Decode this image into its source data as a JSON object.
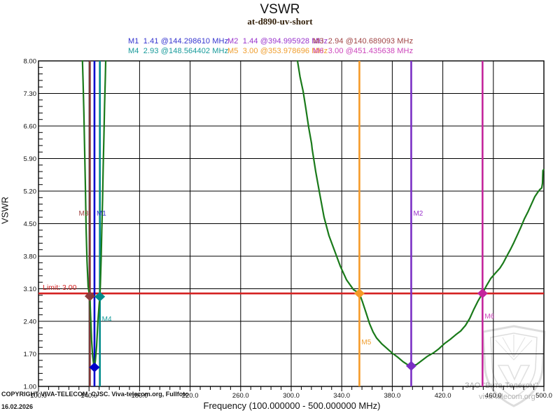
{
  "copyright": {
    "line1": "COPYRIGHT VIVA-TELECOM, CJSC. Viva-telecom.org, Fullfoto",
    "line2": "16.02.2026"
  },
  "watermark": {
    "line1": "ЗАО \"Вита-Телеком\"",
    "line2": "viva-telecom.org"
  },
  "chart_data": {
    "type": "line",
    "title": "VSWR",
    "subtitle": "at-d890-uv-short",
    "xlabel": "Frequency (100.000000 - 500.000000 MHz)",
    "ylabel": "VSWR",
    "xlim": [
      100,
      500
    ],
    "ylim": [
      1.0,
      8.0
    ],
    "x_ticks": [
      100,
      140,
      180,
      220,
      260,
      300,
      340,
      380,
      420,
      460,
      500
    ],
    "y_ticks": [
      8.0,
      7.3,
      6.6,
      5.9,
      5.2,
      4.5,
      3.8,
      3.1,
      2.4,
      1.7,
      1.0
    ],
    "minor_per_major": 5,
    "grid": true,
    "grid_color": "#000000",
    "legend_position": "top",
    "limit_line": {
      "label": "Limit: 3.00",
      "value": 3.0,
      "color": "#d42020"
    },
    "series": [
      {
        "name": "vswr-trace",
        "color": "#1a7a1a",
        "segments": [
          [
            [
              134.8,
              8.0
            ],
            [
              135.3,
              7.55
            ],
            [
              135.9,
              6.9
            ],
            [
              136.5,
              6.1
            ],
            [
              137.1,
              5.3
            ],
            [
              137.7,
              4.4
            ],
            [
              138.4,
              3.7
            ],
            [
              139.3,
              3.15
            ],
            [
              140.0,
              3.02
            ],
            [
              140.69,
              2.94
            ],
            [
              141.3,
              2.5
            ],
            [
              142.0,
              2.0
            ],
            [
              142.9,
              1.65
            ],
            [
              143.7,
              1.46
            ],
            [
              144.3,
              1.41
            ],
            [
              145.0,
              1.55
            ],
            [
              146.0,
              1.86
            ],
            [
              147.0,
              2.38
            ],
            [
              148.0,
              2.75
            ],
            [
              148.56,
              2.93
            ],
            [
              149.0,
              3.2
            ],
            [
              149.6,
              3.75
            ],
            [
              150.1,
              4.35
            ],
            [
              150.7,
              5.0
            ],
            [
              151.2,
              5.7
            ],
            [
              151.8,
              6.4
            ],
            [
              152.3,
              7.05
            ],
            [
              152.9,
              7.65
            ],
            [
              153.2,
              8.0
            ]
          ],
          [
            [
              305.0,
              8.0
            ],
            [
              307.0,
              7.66
            ],
            [
              309.4,
              7.35
            ],
            [
              311.6,
              6.98
            ],
            [
              313.9,
              6.56
            ],
            [
              316.1,
              6.22
            ],
            [
              316.6,
              6.1
            ],
            [
              319.4,
              5.62
            ],
            [
              322.7,
              5.12
            ],
            [
              326.0,
              4.64
            ],
            [
              329.9,
              4.24
            ],
            [
              334.3,
              3.92
            ],
            [
              338.8,
              3.59
            ],
            [
              343.8,
              3.29
            ],
            [
              349.3,
              3.08
            ],
            [
              353.98,
              3.0
            ],
            [
              356.5,
              2.81
            ],
            [
              359.3,
              2.58
            ],
            [
              362.0,
              2.35
            ],
            [
              364.8,
              2.17
            ],
            [
              367.6,
              2.04
            ],
            [
              371.5,
              1.92
            ],
            [
              375.3,
              1.83
            ],
            [
              379.8,
              1.72
            ],
            [
              384.2,
              1.63
            ],
            [
              388.6,
              1.53
            ],
            [
              392.5,
              1.46
            ],
            [
              395.0,
              1.44
            ],
            [
              399.2,
              1.47
            ],
            [
              403.6,
              1.56
            ],
            [
              408.0,
              1.65
            ],
            [
              412.5,
              1.72
            ],
            [
              416.9,
              1.81
            ],
            [
              421.3,
              1.92
            ],
            [
              425.8,
              2.01
            ],
            [
              430.2,
              2.11
            ],
            [
              434.1,
              2.19
            ],
            [
              437.9,
              2.31
            ],
            [
              441.3,
              2.46
            ],
            [
              444.6,
              2.66
            ],
            [
              447.9,
              2.84
            ],
            [
              451.44,
              3.0
            ],
            [
              454.6,
              3.17
            ],
            [
              457.9,
              3.32
            ],
            [
              461.8,
              3.44
            ],
            [
              465.1,
              3.54
            ],
            [
              467.9,
              3.66
            ],
            [
              470.6,
              3.8
            ],
            [
              473.4,
              3.94
            ],
            [
              476.2,
              4.09
            ],
            [
              478.9,
              4.25
            ],
            [
              481.7,
              4.42
            ],
            [
              484.5,
              4.6
            ],
            [
              487.3,
              4.75
            ],
            [
              490.0,
              4.91
            ],
            [
              492.8,
              5.08
            ],
            [
              495.0,
              5.17
            ],
            [
              496.7,
              5.23
            ],
            [
              498.3,
              5.27
            ],
            [
              498.9,
              5.37
            ],
            [
              499.2,
              5.64
            ],
            [
              499.8,
              5.66
            ]
          ]
        ]
      }
    ],
    "markers": [
      {
        "id": "M1",
        "vswr": "1.41",
        "freq": "144.298610 MHz",
        "freq_mhz": 144.29861,
        "marker_vswr": 1.41,
        "text_color": "#3434cf",
        "line_color": "#0000cc",
        "label_vswr": 4.67,
        "label_side": "right"
      },
      {
        "id": "M2",
        "vswr": "1.44",
        "freq": "394.995928 MHz",
        "freq_mhz": 394.995928,
        "marker_vswr": 1.44,
        "text_color": "#9933cc",
        "line_color": "#7a2fc4",
        "label_vswr": 4.67,
        "label_side": "right"
      },
      {
        "id": "M3",
        "vswr": "2.94",
        "freq": "140.689093 MHz",
        "freq_mhz": 140.689093,
        "marker_vswr": 2.94,
        "text_color": "#a04444",
        "line_color": "#8b3c3c",
        "label_vswr": 4.67,
        "label_side": "left"
      },
      {
        "id": "M4",
        "vswr": "2.93",
        "freq": "148.564402 MHz",
        "freq_mhz": 148.564402,
        "marker_vswr": 2.93,
        "text_color": "#169a9a",
        "line_color": "#008b8b",
        "label_vswr": 2.4,
        "label_side": "right"
      },
      {
        "id": "M5",
        "vswr": "3.00",
        "freq": "353.978696 MHz",
        "freq_mhz": 353.978696,
        "marker_vswr": 3.0,
        "text_color": "#ef9d2c",
        "line_color": "#f59a28",
        "label_vswr": 1.9,
        "label_side": "right"
      },
      {
        "id": "M6",
        "vswr": "3.00",
        "freq": "451.435638 MHz",
        "freq_mhz": 451.435638,
        "marker_vswr": 3.0,
        "text_color": "#cc44bb",
        "line_color": "#c4259c",
        "label_vswr": 2.46,
        "label_side": "right"
      }
    ]
  }
}
